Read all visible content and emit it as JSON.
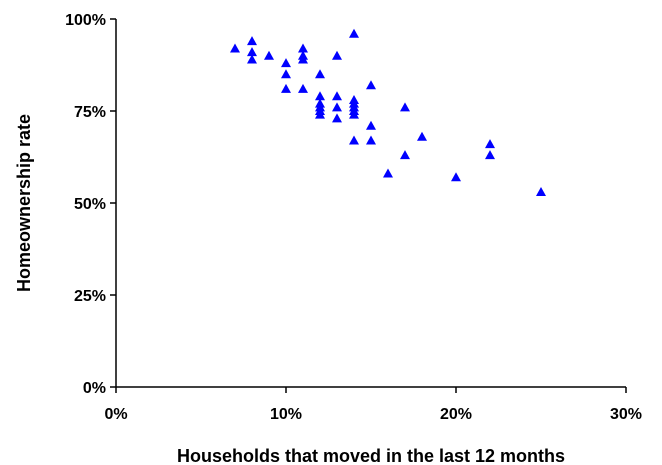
{
  "chart_data": {
    "type": "scatter",
    "title": "",
    "xlabel": "Households that moved in the last 12 months",
    "ylabel": "Homeownership rate",
    "xlim": [
      0,
      30
    ],
    "ylim": [
      0,
      100
    ],
    "x_ticks": [
      "0%",
      "10%",
      "20%",
      "30%"
    ],
    "y_ticks": [
      "0%",
      "25%",
      "50%",
      "75%",
      "100%"
    ],
    "grid": false,
    "legend": "none",
    "marker": "triangle",
    "marker_color": "#0000FF",
    "series": [
      {
        "x": [
          7,
          8,
          8,
          8,
          9,
          10,
          10,
          10,
          11,
          11,
          11,
          11,
          12,
          12,
          12,
          12,
          12,
          12,
          13,
          13,
          13,
          13,
          14,
          14,
          14,
          14,
          14,
          14,
          14,
          15,
          15,
          15,
          16,
          17,
          17,
          18,
          20,
          22,
          22,
          25
        ],
        "y": [
          92,
          94,
          91,
          89,
          90,
          88,
          85,
          81,
          92,
          89,
          90,
          81,
          85,
          79,
          77,
          75,
          74,
          76,
          90,
          79,
          76,
          73,
          96,
          78,
          77,
          76,
          75,
          67,
          74,
          82,
          71,
          67,
          58,
          76,
          63,
          68,
          57,
          66,
          63,
          53
        ]
      }
    ]
  }
}
